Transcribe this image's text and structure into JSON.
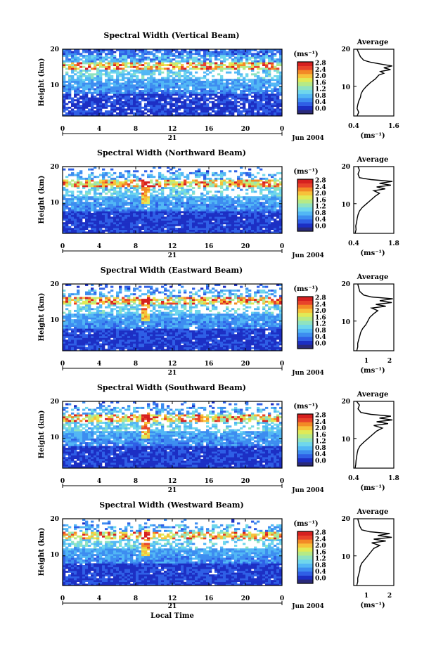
{
  "figure": {
    "xlabel": "Local Time",
    "cbar_unit": "(ms⁻¹)",
    "cbar_ticks": [
      "0.0",
      "0.4",
      "0.8",
      "1.2",
      "1.6",
      "2.0",
      "2.4",
      "2.8"
    ],
    "month_label": "Jun 2004",
    "day_label": "21",
    "avg_title": "Average",
    "avg_xlabel": "(ms⁻¹)",
    "colorscale": [
      "#2a2a7a",
      "#1c2fc4",
      "#2f5fe6",
      "#3d8df0",
      "#52b7f5",
      "#6fd7ec",
      "#8fe3c0",
      "#b6ea86",
      "#e1ea56",
      "#f7c23a",
      "#f38a26",
      "#e8432a",
      "#d6201f"
    ]
  },
  "chart_data": [
    {
      "type": "heatmap",
      "title": "Spectral Width (Vertical Beam)",
      "ylabel": "Height (km)",
      "xticks": [
        "0",
        "4",
        "8",
        "12",
        "16",
        "20",
        "0"
      ],
      "yticks": [
        "20",
        "10"
      ],
      "xlim": [
        0,
        24
      ],
      "ylim": [
        2,
        20
      ],
      "clim": [
        0,
        3.0
      ],
      "average": {
        "xlim": [
          0.4,
          1.6
        ],
        "xticks": [
          "0.4",
          "1.6"
        ],
        "yticks": [
          "20",
          "10"
        ],
        "profile": [
          [
            0.5,
            2
          ],
          [
            0.55,
            3
          ],
          [
            0.5,
            4
          ],
          [
            0.52,
            5
          ],
          [
            0.55,
            6
          ],
          [
            0.6,
            7
          ],
          [
            0.62,
            8
          ],
          [
            0.68,
            9
          ],
          [
            0.78,
            10
          ],
          [
            0.9,
            11
          ],
          [
            1.05,
            12
          ],
          [
            1.15,
            13
          ],
          [
            1.3,
            13.5
          ],
          [
            1.2,
            14
          ],
          [
            1.5,
            14.5
          ],
          [
            1.3,
            15
          ],
          [
            1.55,
            15.5
          ],
          [
            1.2,
            16
          ],
          [
            0.9,
            16.5
          ],
          [
            0.7,
            17
          ],
          [
            0.6,
            18
          ],
          [
            0.55,
            19
          ],
          [
            0.5,
            20
          ]
        ]
      }
    },
    {
      "type": "heatmap",
      "title": "Spectral Width (Northward Beam)",
      "ylabel": "Height (km)",
      "xticks": [
        "0",
        "4",
        "8",
        "12",
        "16",
        "20",
        "0"
      ],
      "yticks": [
        "20",
        "10"
      ],
      "xlim": [
        0,
        24
      ],
      "ylim": [
        2,
        20
      ],
      "clim": [
        0,
        3.0
      ],
      "average": {
        "xlim": [
          0.4,
          1.8
        ],
        "xticks": [
          "0.4",
          "1.8"
        ],
        "yticks": [
          "20",
          "10"
        ],
        "profile": [
          [
            0.45,
            2
          ],
          [
            0.48,
            3
          ],
          [
            0.47,
            4
          ],
          [
            0.5,
            5
          ],
          [
            0.52,
            6
          ],
          [
            0.55,
            7
          ],
          [
            0.6,
            8
          ],
          [
            0.7,
            9
          ],
          [
            0.85,
            10
          ],
          [
            1.0,
            11
          ],
          [
            1.15,
            12
          ],
          [
            1.3,
            12.8
          ],
          [
            1.1,
            13.5
          ],
          [
            1.5,
            14
          ],
          [
            1.2,
            14.5
          ],
          [
            1.7,
            15
          ],
          [
            1.3,
            15.5
          ],
          [
            1.75,
            16
          ],
          [
            1.0,
            16.5
          ],
          [
            0.6,
            17
          ],
          [
            0.55,
            18
          ],
          [
            0.6,
            19
          ],
          [
            0.55,
            20
          ]
        ]
      }
    },
    {
      "type": "heatmap",
      "title": "Spectral Width (Eastward Beam)",
      "ylabel": "Height (km)",
      "xticks": [
        "0",
        "4",
        "8",
        "12",
        "16",
        "20",
        "0"
      ],
      "yticks": [
        "20",
        "10"
      ],
      "xlim": [
        0,
        24
      ],
      "ylim": [
        2,
        20
      ],
      "clim": [
        0,
        3.0
      ],
      "average": {
        "xlim": [
          0.3,
          2.3
        ],
        "xticks": [
          "1",
          "2"
        ],
        "yticks": [
          "20",
          "10"
        ],
        "profile": [
          [
            0.45,
            2
          ],
          [
            0.5,
            3
          ],
          [
            0.5,
            4
          ],
          [
            0.55,
            5
          ],
          [
            0.6,
            6
          ],
          [
            0.65,
            7
          ],
          [
            0.75,
            8
          ],
          [
            0.9,
            9
          ],
          [
            1.0,
            10
          ],
          [
            1.1,
            11
          ],
          [
            1.3,
            12
          ],
          [
            1.5,
            12.8
          ],
          [
            1.2,
            13.5
          ],
          [
            1.9,
            14
          ],
          [
            1.4,
            14.5
          ],
          [
            2.2,
            15
          ],
          [
            1.6,
            15.5
          ],
          [
            2.25,
            16
          ],
          [
            1.2,
            16.5
          ],
          [
            0.8,
            17
          ],
          [
            0.6,
            18
          ],
          [
            0.55,
            19
          ],
          [
            0.5,
            20
          ]
        ]
      }
    },
    {
      "type": "heatmap",
      "title": "Spectral Width (Southward Beam)",
      "ylabel": "Height (km)",
      "xticks": [
        "0",
        "4",
        "8",
        "12",
        "16",
        "20",
        "0"
      ],
      "yticks": [
        "20",
        "10"
      ],
      "xlim": [
        0,
        24
      ],
      "ylim": [
        2,
        20
      ],
      "clim": [
        0,
        3.0
      ],
      "average": {
        "xlim": [
          0.4,
          1.8
        ],
        "xticks": [
          "0.4",
          "1.8"
        ],
        "yticks": [
          "20",
          "10"
        ],
        "profile": [
          [
            0.45,
            2
          ],
          [
            0.47,
            3
          ],
          [
            0.48,
            4
          ],
          [
            0.5,
            5
          ],
          [
            0.52,
            6
          ],
          [
            0.55,
            7
          ],
          [
            0.62,
            8
          ],
          [
            0.75,
            9
          ],
          [
            0.9,
            10
          ],
          [
            1.05,
            11
          ],
          [
            1.2,
            12
          ],
          [
            1.4,
            12.8
          ],
          [
            1.1,
            13.5
          ],
          [
            1.6,
            14
          ],
          [
            1.2,
            14.5
          ],
          [
            1.75,
            15
          ],
          [
            1.3,
            15.5
          ],
          [
            1.7,
            16
          ],
          [
            1.0,
            16.5
          ],
          [
            0.65,
            17
          ],
          [
            0.55,
            18
          ],
          [
            0.6,
            19
          ],
          [
            0.5,
            20
          ]
        ]
      }
    },
    {
      "type": "heatmap",
      "title": "Spectral Width (Westward Beam)",
      "ylabel": "Height (km)",
      "xticks": [
        "0",
        "4",
        "8",
        "12",
        "16",
        "20",
        "0"
      ],
      "yticks": [
        "20",
        "10"
      ],
      "xlim": [
        0,
        24
      ],
      "ylim": [
        2,
        20
      ],
      "clim": [
        0,
        3.0
      ],
      "average": {
        "xlim": [
          0.3,
          2.3
        ],
        "xticks": [
          "1",
          "2"
        ],
        "yticks": [
          "20",
          "10"
        ],
        "profile": [
          [
            0.45,
            2
          ],
          [
            0.5,
            3
          ],
          [
            0.5,
            4
          ],
          [
            0.55,
            5
          ],
          [
            0.6,
            6
          ],
          [
            0.62,
            7
          ],
          [
            0.7,
            8
          ],
          [
            0.85,
            9
          ],
          [
            1.0,
            10
          ],
          [
            1.15,
            11
          ],
          [
            1.3,
            12
          ],
          [
            1.6,
            12.8
          ],
          [
            1.2,
            13.5
          ],
          [
            1.9,
            14
          ],
          [
            1.3,
            14.5
          ],
          [
            2.2,
            15
          ],
          [
            1.5,
            15.5
          ],
          [
            2.1,
            16
          ],
          [
            1.1,
            16.5
          ],
          [
            0.7,
            17
          ],
          [
            0.6,
            18
          ],
          [
            0.55,
            19
          ],
          [
            0.5,
            20
          ]
        ]
      }
    }
  ]
}
